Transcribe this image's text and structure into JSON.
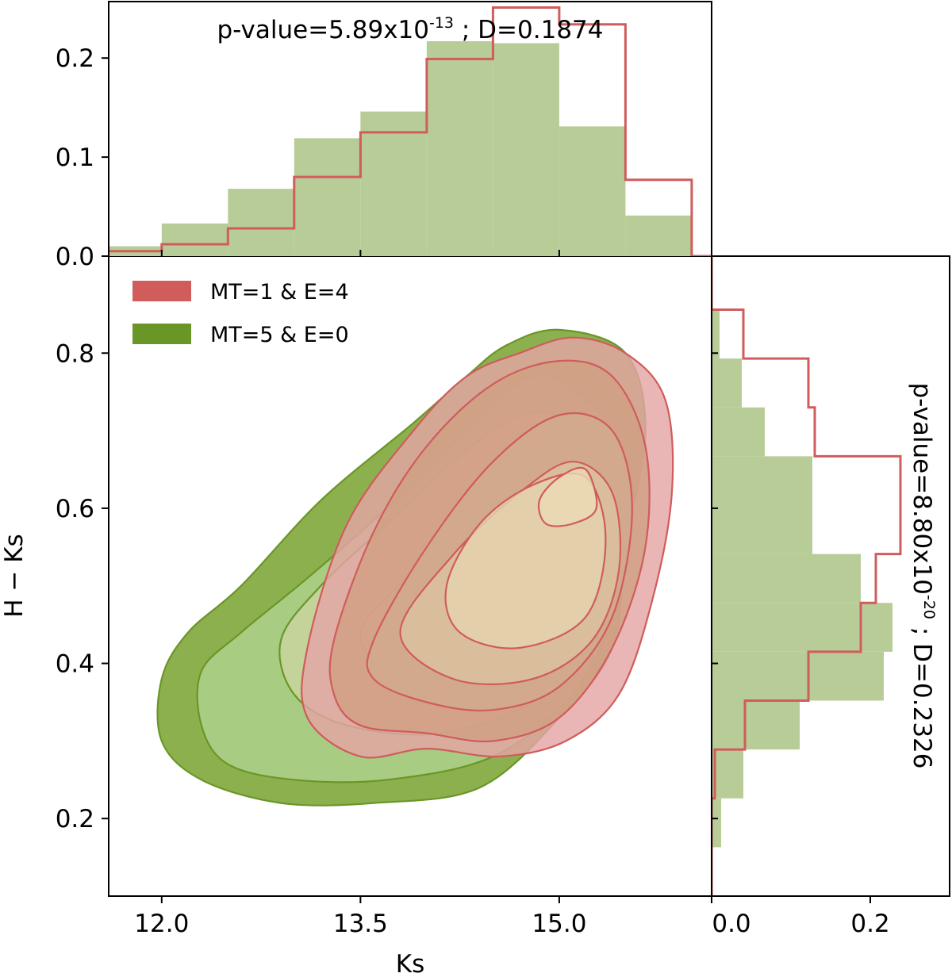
{
  "chart_data": [
    {
      "type": "contour",
      "name": "joint-kde",
      "xlabel": "Ks",
      "ylabel": "H − Ks",
      "xlim": [
        11.6,
        16.15
      ],
      "ylim": [
        0.1,
        0.925
      ],
      "xticks": [
        12.0,
        13.5,
        15.0
      ],
      "xtick_labels": [
        "12.0",
        "13.5",
        "15.0"
      ],
      "yticks": [
        0.2,
        0.4,
        0.6,
        0.8
      ],
      "ytick_labels": [
        "0.2",
        "0.4",
        "0.6",
        "0.8"
      ],
      "legend": {
        "position": "upper-left",
        "entries": [
          {
            "label": "MT=1 & E=4",
            "color": "#d05c5c"
          },
          {
            "label": "MT=5 & E=0",
            "color": "#6a9628"
          }
        ]
      },
      "series": [
        {
          "name": "MT=5 & E=0",
          "edge_color": "#6a9628",
          "fill_colors": [
            "#8cb04e",
            "#a8cd82",
            "#c3d399",
            "#d7dca8",
            "#e3e1b3",
            "#ece8be"
          ],
          "levels": [
            [
              [
                12.0,
                0.38
              ],
              [
                12.2,
                0.44
              ],
              [
                12.6,
                0.5
              ],
              [
                13.2,
                0.61
              ],
              [
                13.9,
                0.71
              ],
              [
                14.3,
                0.77
              ],
              [
                14.6,
                0.81
              ],
              [
                15.0,
                0.83
              ],
              [
                15.5,
                0.8
              ],
              [
                15.65,
                0.7
              ],
              [
                15.5,
                0.55
              ],
              [
                15.4,
                0.42
              ],
              [
                15.0,
                0.33
              ],
              [
                14.4,
                0.24
              ],
              [
                13.6,
                0.22
              ],
              [
                12.9,
                0.22
              ],
              [
                12.3,
                0.25
              ],
              [
                12.0,
                0.3
              ]
            ],
            [
              [
                12.3,
                0.39
              ],
              [
                12.6,
                0.44
              ],
              [
                13.1,
                0.51
              ],
              [
                13.7,
                0.6
              ],
              [
                14.3,
                0.7
              ],
              [
                14.8,
                0.77
              ],
              [
                15.2,
                0.74
              ],
              [
                15.5,
                0.67
              ],
              [
                15.55,
                0.58
              ],
              [
                15.4,
                0.46
              ],
              [
                15.1,
                0.36
              ],
              [
                14.5,
                0.28
              ],
              [
                13.7,
                0.25
              ],
              [
                13.0,
                0.25
              ],
              [
                12.5,
                0.27
              ],
              [
                12.3,
                0.32
              ]
            ],
            [
              [
                12.9,
                0.43
              ],
              [
                13.2,
                0.5
              ],
              [
                13.7,
                0.58
              ],
              [
                14.2,
                0.66
              ],
              [
                14.7,
                0.72
              ],
              [
                15.1,
                0.71
              ],
              [
                15.4,
                0.64
              ],
              [
                15.45,
                0.54
              ],
              [
                15.3,
                0.43
              ],
              [
                14.8,
                0.35
              ],
              [
                14.1,
                0.31
              ],
              [
                13.4,
                0.32
              ],
              [
                13.0,
                0.36
              ]
            ],
            [
              [
                13.5,
                0.44
              ],
              [
                13.9,
                0.52
              ],
              [
                14.3,
                0.6
              ],
              [
                14.7,
                0.66
              ],
              [
                15.0,
                0.66
              ],
              [
                15.2,
                0.6
              ],
              [
                15.2,
                0.5
              ],
              [
                14.9,
                0.41
              ],
              [
                14.4,
                0.37
              ],
              [
                13.8,
                0.38
              ]
            ],
            [
              [
                13.8,
                0.44
              ],
              [
                14.1,
                0.51
              ],
              [
                14.5,
                0.58
              ],
              [
                14.9,
                0.6
              ],
              [
                15.0,
                0.55
              ],
              [
                14.9,
                0.46
              ],
              [
                14.5,
                0.41
              ],
              [
                14.0,
                0.41
              ]
            ],
            [
              [
                14.15,
                0.44
              ],
              [
                14.3,
                0.48
              ],
              [
                14.6,
                0.53
              ],
              [
                14.75,
                0.52
              ],
              [
                14.7,
                0.47
              ],
              [
                14.45,
                0.43
              ],
              [
                14.2,
                0.42
              ]
            ]
          ]
        },
        {
          "name": "MT=1 & E=4",
          "edge_color": "#d05c5c",
          "fill_colors": [
            "#e4a5a5",
            "#d1a082",
            "#d2ab8e",
            "#dcc29f",
            "#e4d3ad",
            "#ead9b2"
          ],
          "levels": [
            [
              [
                13.1,
                0.42
              ],
              [
                13.4,
                0.58
              ],
              [
                13.9,
                0.7
              ],
              [
                14.3,
                0.77
              ],
              [
                14.7,
                0.8
              ],
              [
                15.1,
                0.82
              ],
              [
                15.5,
                0.8
              ],
              [
                15.8,
                0.74
              ],
              [
                15.85,
                0.62
              ],
              [
                15.7,
                0.48
              ],
              [
                15.45,
                0.36
              ],
              [
                15.05,
                0.3
              ],
              [
                14.55,
                0.28
              ],
              [
                14.0,
                0.29
              ],
              [
                13.5,
                0.28
              ],
              [
                13.1,
                0.33
              ]
            ],
            [
              [
                13.3,
                0.43
              ],
              [
                13.6,
                0.57
              ],
              [
                14.0,
                0.68
              ],
              [
                14.5,
                0.76
              ],
              [
                15.0,
                0.79
              ],
              [
                15.4,
                0.77
              ],
              [
                15.65,
                0.68
              ],
              [
                15.65,
                0.55
              ],
              [
                15.4,
                0.42
              ],
              [
                15.0,
                0.33
              ],
              [
                14.5,
                0.3
              ],
              [
                14.0,
                0.31
              ],
              [
                13.5,
                0.32
              ],
              [
                13.3,
                0.36
              ]
            ],
            [
              [
                13.6,
                0.43
              ],
              [
                14.0,
                0.55
              ],
              [
                14.5,
                0.66
              ],
              [
                15.0,
                0.72
              ],
              [
                15.4,
                0.7
              ],
              [
                15.55,
                0.6
              ],
              [
                15.4,
                0.46
              ],
              [
                15.0,
                0.37
              ],
              [
                14.5,
                0.34
              ],
              [
                14.0,
                0.35
              ],
              [
                13.6,
                0.38
              ]
            ],
            [
              [
                13.8,
                0.44
              ],
              [
                14.2,
                0.54
              ],
              [
                14.7,
                0.62
              ],
              [
                15.1,
                0.66
              ],
              [
                15.4,
                0.62
              ],
              [
                15.45,
                0.52
              ],
              [
                15.25,
                0.43
              ],
              [
                14.8,
                0.38
              ],
              [
                14.2,
                0.38
              ]
            ],
            [
              [
                14.15,
                0.5
              ],
              [
                14.4,
                0.58
              ],
              [
                14.8,
                0.63
              ],
              [
                15.2,
                0.64
              ],
              [
                15.35,
                0.56
              ],
              [
                15.2,
                0.46
              ],
              [
                14.7,
                0.42
              ],
              [
                14.25,
                0.44
              ]
            ],
            [
              [
                14.85,
                0.61
              ],
              [
                15.0,
                0.64
              ],
              [
                15.2,
                0.65
              ],
              [
                15.28,
                0.6
              ],
              [
                15.1,
                0.58
              ],
              [
                14.9,
                0.58
              ]
            ]
          ]
        }
      ]
    },
    {
      "type": "histogram",
      "name": "top-marginal",
      "orientation": "vertical",
      "title": "p-value=5.89x10-13 ; D=0.1874",
      "p_value_mantissa": "p-value=5.89x10",
      "p_value_exponent": "-13",
      "d_label": " ; D=0.1874",
      "xlim": [
        11.6,
        16.15
      ],
      "ylim": [
        0,
        0.257
      ],
      "yticks": [
        0.0,
        0.1,
        0.2
      ],
      "ytick_labels": [
        "0.0",
        "0.1",
        "0.2"
      ],
      "bin_edges": [
        11.5,
        12.0,
        12.5,
        13.0,
        13.5,
        14.0,
        14.5,
        15.0,
        15.5,
        16.0,
        16.5
      ],
      "series": [
        {
          "name": "MT=5 & E=0",
          "style": "filled",
          "color": "#b8cc97",
          "values": [
            0.01,
            0.033,
            0.068,
            0.119,
            0.146,
            0.217,
            0.215,
            0.131,
            0.041,
            0.0
          ]
        },
        {
          "name": "MT=1 & E=4",
          "style": "step",
          "color": "#d05c5c",
          "values": [
            0.005,
            0.012,
            0.028,
            0.08,
            0.125,
            0.199,
            0.251,
            0.234,
            0.077,
            0.0
          ]
        }
      ]
    },
    {
      "type": "histogram",
      "name": "right-marginal",
      "orientation": "horizontal",
      "title": "p-value=8.80x10-20 ; D=0.2326",
      "p_value_mantissa": "p-value=8.80x10",
      "p_value_exponent": "-20",
      "d_label": " ; D=0.2326",
      "xlim": [
        0,
        0.3
      ],
      "xticks": [
        0.0,
        0.2
      ],
      "xtick_labels": [
        "0.0",
        "0.2"
      ],
      "ylim": [
        0.1,
        0.925
      ],
      "bin_edges": [
        0.1,
        0.163,
        0.226,
        0.289,
        0.352,
        0.415,
        0.478,
        0.541,
        0.604,
        0.667,
        0.73,
        0.793,
        0.856,
        0.925
      ],
      "series": [
        {
          "name": "MT=5 & E=0",
          "style": "filled",
          "color": "#b8cc97",
          "values": [
            0.0,
            0.012,
            0.04,
            0.111,
            0.217,
            0.228,
            0.188,
            0.127,
            0.127,
            0.067,
            0.038,
            0.01,
            0.0
          ]
        },
        {
          "name": "MT=1 & E=4",
          "style": "step",
          "color": "#d05c5c",
          "values": [
            0.0,
            0.0,
            0.004,
            0.042,
            0.122,
            0.188,
            0.207,
            0.238,
            0.238,
            0.13,
            0.122,
            0.04,
            0.0
          ]
        }
      ]
    }
  ]
}
